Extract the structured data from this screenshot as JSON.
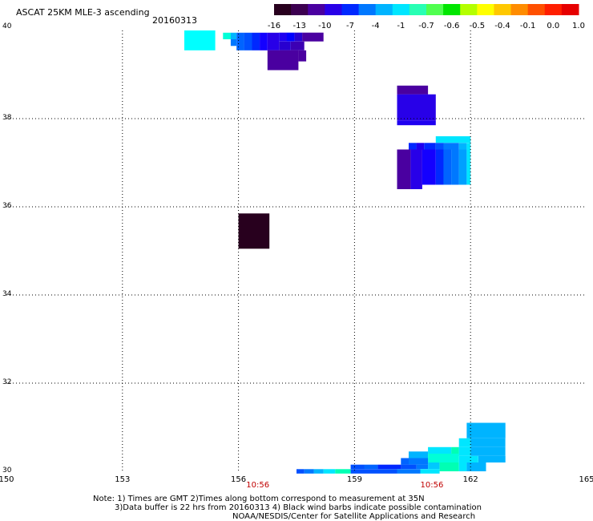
{
  "header": {
    "title": "ASCAT 25KM MLE-3 ascending",
    "date": "20160313"
  },
  "colorbar": {
    "tick_labels": [
      "-16",
      "-13",
      "-10",
      "-7",
      "-4",
      "-1",
      "-0.7",
      "-0.6",
      "-0.5",
      "-0.4",
      "-0.1",
      "0.0",
      "1.0"
    ],
    "colors": [
      "#28001e",
      "#3c0050",
      "#4a00a0",
      "#2800e8",
      "#0028ff",
      "#0078ff",
      "#00b4ff",
      "#00e6ff",
      "#28ffb4",
      "#50ff50",
      "#00e600",
      "#b4ff00",
      "#ffff00",
      "#ffc800",
      "#ff8c00",
      "#ff5000",
      "#ff1e00",
      "#e60000"
    ]
  },
  "map": {
    "lon_range": [
      150,
      165
    ],
    "lat_range": [
      30,
      40
    ],
    "lon_ticks": [
      "150",
      "153",
      "156",
      "159",
      "162",
      "165"
    ],
    "lat_ticks": [
      "40",
      "38",
      "36",
      "34",
      "32",
      "30"
    ],
    "time_labels": [
      {
        "text": "10:56",
        "lon": 156.5
      },
      {
        "text": "10:56",
        "lon": 161.0
      }
    ],
    "cells": [
      {
        "lon": 154.6,
        "lat": 39.55,
        "w": 0.8,
        "h": 0.45,
        "color": "#00ffff"
      },
      {
        "lon": 155.6,
        "lat": 39.8,
        "w": 0.2,
        "h": 0.15,
        "color": "#00ffd8"
      },
      {
        "lon": 155.8,
        "lat": 39.8,
        "w": 0.15,
        "h": 0.15,
        "color": "#00b4ff"
      },
      {
        "lon": 155.8,
        "lat": 39.65,
        "w": 0.15,
        "h": 0.15,
        "color": "#0078ff"
      },
      {
        "lon": 155.95,
        "lat": 39.55,
        "w": 0.2,
        "h": 0.4,
        "color": "#0064ff"
      },
      {
        "lon": 156.15,
        "lat": 39.55,
        "w": 0.2,
        "h": 0.4,
        "color": "#0050ff"
      },
      {
        "lon": 156.35,
        "lat": 39.55,
        "w": 0.2,
        "h": 0.4,
        "color": "#0028ff"
      },
      {
        "lon": 156.55,
        "lat": 39.55,
        "w": 0.2,
        "h": 0.4,
        "color": "#1400ff"
      },
      {
        "lon": 156.75,
        "lat": 39.55,
        "w": 0.3,
        "h": 0.4,
        "color": "#2800e8"
      },
      {
        "lon": 157.05,
        "lat": 39.75,
        "w": 0.2,
        "h": 0.2,
        "color": "#1e00f0"
      },
      {
        "lon": 157.25,
        "lat": 39.75,
        "w": 0.2,
        "h": 0.2,
        "color": "#0000ff"
      },
      {
        "lon": 157.45,
        "lat": 39.75,
        "w": 0.2,
        "h": 0.2,
        "color": "#2800d0"
      },
      {
        "lon": 157.65,
        "lat": 39.75,
        "w": 0.55,
        "h": 0.2,
        "color": "#4a00a0"
      },
      {
        "lon": 157.05,
        "lat": 39.55,
        "w": 0.3,
        "h": 0.2,
        "color": "#2800d0"
      },
      {
        "lon": 157.35,
        "lat": 39.55,
        "w": 0.35,
        "h": 0.2,
        "color": "#3c00b4"
      },
      {
        "lon": 156.75,
        "lat": 39.1,
        "w": 0.8,
        "h": 0.45,
        "color": "#4a00a0"
      },
      {
        "lon": 157.55,
        "lat": 39.3,
        "w": 0.2,
        "h": 0.25,
        "color": "#4a00a0"
      },
      {
        "lon": 160.1,
        "lat": 38.55,
        "w": 0.8,
        "h": 0.2,
        "color": "#4a00a0"
      },
      {
        "lon": 160.1,
        "lat": 37.95,
        "w": 1.0,
        "h": 0.6,
        "color": "#2800e8"
      },
      {
        "lon": 160.1,
        "lat": 37.85,
        "w": 1.0,
        "h": 0.1,
        "color": "#1e00f0"
      },
      {
        "lon": 161.1,
        "lat": 37.45,
        "w": 0.9,
        "h": 0.15,
        "color": "#00e6ff"
      },
      {
        "lon": 160.4,
        "lat": 37.3,
        "w": 0.2,
        "h": 0.15,
        "color": "#0028ff"
      },
      {
        "lon": 160.6,
        "lat": 37.3,
        "w": 0.2,
        "h": 0.15,
        "color": "#1e00f0"
      },
      {
        "lon": 160.8,
        "lat": 37.3,
        "w": 0.3,
        "h": 0.15,
        "color": "#0028ff"
      },
      {
        "lon": 161.1,
        "lat": 37.3,
        "w": 0.2,
        "h": 0.15,
        "color": "#0050ff"
      },
      {
        "lon": 161.3,
        "lat": 37.3,
        "w": 0.4,
        "h": 0.15,
        "color": "#0078ff"
      },
      {
        "lon": 161.7,
        "lat": 37.3,
        "w": 0.2,
        "h": 0.15,
        "color": "#00b4ff"
      },
      {
        "lon": 161.9,
        "lat": 37.3,
        "w": 0.1,
        "h": 0.15,
        "color": "#00e6ff"
      },
      {
        "lon": 160.1,
        "lat": 36.4,
        "w": 0.35,
        "h": 0.9,
        "color": "#4a00a0"
      },
      {
        "lon": 160.45,
        "lat": 36.4,
        "w": 0.3,
        "h": 0.9,
        "color": "#2800e8"
      },
      {
        "lon": 160.75,
        "lat": 36.5,
        "w": 0.35,
        "h": 0.8,
        "color": "#1400ff"
      },
      {
        "lon": 161.1,
        "lat": 36.5,
        "w": 0.2,
        "h": 0.8,
        "color": "#0028ff"
      },
      {
        "lon": 161.3,
        "lat": 36.5,
        "w": 0.2,
        "h": 0.8,
        "color": "#0064ff"
      },
      {
        "lon": 161.5,
        "lat": 36.5,
        "w": 0.2,
        "h": 0.8,
        "color": "#0078ff"
      },
      {
        "lon": 161.7,
        "lat": 36.5,
        "w": 0.2,
        "h": 0.8,
        "color": "#00a0ff"
      },
      {
        "lon": 161.9,
        "lat": 36.5,
        "w": 0.1,
        "h": 0.8,
        "color": "#00e6ff"
      },
      {
        "lon": 156.0,
        "lat": 35.05,
        "w": 0.8,
        "h": 0.8,
        "color": "#28001e"
      },
      {
        "lon": 161.9,
        "lat": 30.75,
        "w": 1.0,
        "h": 0.35,
        "color": "#00b4ff"
      },
      {
        "lon": 161.7,
        "lat": 30.55,
        "w": 0.3,
        "h": 0.2,
        "color": "#00e6ff"
      },
      {
        "lon": 162.0,
        "lat": 30.55,
        "w": 0.9,
        "h": 0.2,
        "color": "#00b4ff"
      },
      {
        "lon": 161.5,
        "lat": 30.35,
        "w": 0.2,
        "h": 0.2,
        "color": "#00ffb4"
      },
      {
        "lon": 161.7,
        "lat": 30.35,
        "w": 0.3,
        "h": 0.2,
        "color": "#00e6ff"
      },
      {
        "lon": 162.0,
        "lat": 30.35,
        "w": 0.9,
        "h": 0.2,
        "color": "#00b4ff"
      },
      {
        "lon": 160.9,
        "lat": 30.4,
        "w": 0.6,
        "h": 0.15,
        "color": "#00e6ff"
      },
      {
        "lon": 160.4,
        "lat": 30.3,
        "w": 0.5,
        "h": 0.15,
        "color": "#00b4ff"
      },
      {
        "lon": 160.9,
        "lat": 30.2,
        "w": 0.8,
        "h": 0.2,
        "color": "#00ffd8"
      },
      {
        "lon": 161.7,
        "lat": 30.2,
        "w": 0.5,
        "h": 0.15,
        "color": "#00e6ff"
      },
      {
        "lon": 162.2,
        "lat": 30.2,
        "w": 0.7,
        "h": 0.15,
        "color": "#00b4ff"
      },
      {
        "lon": 160.2,
        "lat": 30.15,
        "w": 0.2,
        "h": 0.15,
        "color": "#0064ff"
      },
      {
        "lon": 160.4,
        "lat": 30.15,
        "w": 0.5,
        "h": 0.15,
        "color": "#0078ff"
      },
      {
        "lon": 159.6,
        "lat": 30.05,
        "w": 0.6,
        "h": 0.1,
        "color": "#0028ff"
      },
      {
        "lon": 160.2,
        "lat": 30.05,
        "w": 0.4,
        "h": 0.1,
        "color": "#0050ff"
      },
      {
        "lon": 160.6,
        "lat": 30.05,
        "w": 0.3,
        "h": 0.1,
        "color": "#0078ff"
      },
      {
        "lon": 160.9,
        "lat": 30.05,
        "w": 0.3,
        "h": 0.15,
        "color": "#00c8ff"
      },
      {
        "lon": 161.2,
        "lat": 30.0,
        "w": 0.5,
        "h": 0.2,
        "color": "#00ffb4"
      },
      {
        "lon": 161.7,
        "lat": 30.0,
        "w": 0.2,
        "h": 0.2,
        "color": "#00e6ff"
      },
      {
        "lon": 161.9,
        "lat": 30.0,
        "w": 0.5,
        "h": 0.2,
        "color": "#00b4ff"
      },
      {
        "lon": 158.9,
        "lat": 30.05,
        "w": 0.35,
        "h": 0.1,
        "color": "#0050ff"
      },
      {
        "lon": 159.25,
        "lat": 30.05,
        "w": 0.35,
        "h": 0.1,
        "color": "#0064ff"
      },
      {
        "lon": 158.9,
        "lat": 29.95,
        "w": 1.2,
        "h": 0.1,
        "color": "#0050ff"
      },
      {
        "lon": 160.1,
        "lat": 29.95,
        "w": 0.6,
        "h": 0.1,
        "color": "#0078ff"
      },
      {
        "lon": 160.7,
        "lat": 29.95,
        "w": 0.5,
        "h": 0.1,
        "color": "#00e6ff"
      },
      {
        "lon": 157.5,
        "lat": 29.95,
        "w": 0.2,
        "h": 0.1,
        "color": "#0050ff"
      },
      {
        "lon": 157.7,
        "lat": 29.95,
        "w": 0.25,
        "h": 0.1,
        "color": "#0078ff"
      },
      {
        "lon": 157.95,
        "lat": 29.95,
        "w": 0.25,
        "h": 0.1,
        "color": "#00b4ff"
      },
      {
        "lon": 158.2,
        "lat": 29.95,
        "w": 0.3,
        "h": 0.1,
        "color": "#00e6ff"
      },
      {
        "lon": 158.5,
        "lat": 29.95,
        "w": 0.4,
        "h": 0.1,
        "color": "#00ffb4"
      }
    ]
  },
  "notes": [
    "Note: 1) Times are GMT 2)Times along bottom correspond to measurement at 35N",
    "3)Data buffer is 22 hrs from 20160313 4) Black wind barbs indicate possible contamination",
    "NOAA/NESDIS/Center for Satellite Applications and Research"
  ]
}
